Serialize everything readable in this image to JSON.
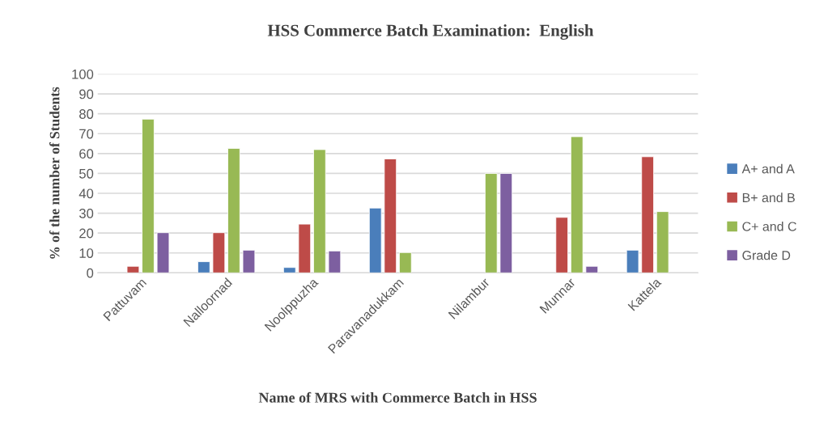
{
  "chart_data": {
    "type": "bar",
    "title": "HSS Commerce Batch Examination:  English",
    "xlabel": "Name of MRS with Commerce Batch in HSS",
    "ylabel": "% of the number of Students",
    "categories": [
      "Pattuvam",
      "Nalloornad",
      "Noolppuzha",
      "Paravanadukkam",
      "Nilambur",
      "Munnar",
      "Kattela"
    ],
    "series": [
      {
        "name": "A+ and A",
        "color": "#4a7ebb",
        "values": [
          null,
          5.6,
          2.7,
          32.6,
          null,
          null,
          11.4
        ]
      },
      {
        "name": "B+ and B",
        "color": "#be4b48",
        "values": [
          3.3,
          20.2,
          24.5,
          57.3,
          null,
          27.9,
          58.4
        ]
      },
      {
        "name": "C+ and C",
        "color": "#98b954",
        "values": [
          77.3,
          62.6,
          62.0,
          10.2,
          50,
          68.5,
          30.8
        ]
      },
      {
        "name": "Grade D",
        "color": "#7d5fa0",
        "values": [
          20.2,
          11.4,
          11.0,
          null,
          50,
          3.3,
          null
        ]
      }
    ],
    "ylim": [
      0,
      100
    ],
    "yticks": [
      0,
      10,
      20,
      30,
      40,
      50,
      60,
      70,
      80,
      90,
      100
    ],
    "grid": "y",
    "legend": "right"
  }
}
